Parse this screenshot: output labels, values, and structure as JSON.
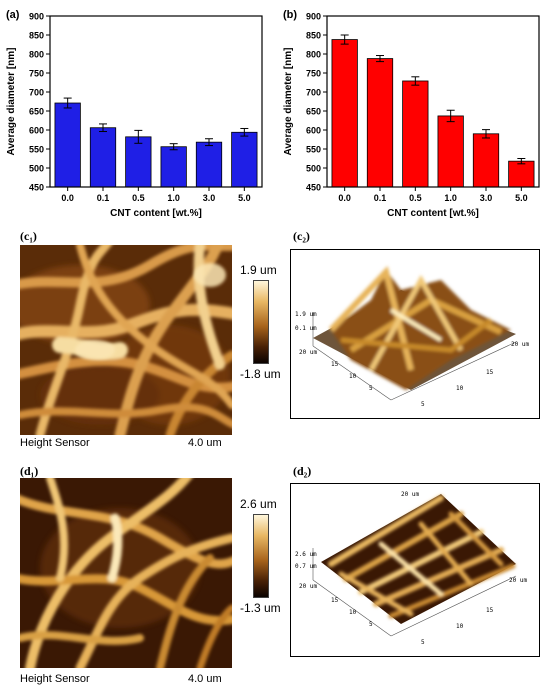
{
  "chart_data": [
    {
      "type": "bar",
      "panel": "(a)",
      "color": "#1f1fe6",
      "categories": [
        "0.0",
        "0.1",
        "0.5",
        "1.0",
        "3.0",
        "5.0"
      ],
      "values": [
        671,
        606,
        582,
        556,
        568,
        594
      ],
      "errors": [
        13,
        10,
        17,
        8,
        9,
        10
      ],
      "ylim": [
        450,
        900
      ],
      "yticks": [
        "450",
        "500",
        "550",
        "600",
        "650",
        "700",
        "750",
        "800",
        "850",
        "900"
      ],
      "xlabel": "CNT content [wt.%]",
      "ylabel": "Average diameter [nm]"
    },
    {
      "type": "bar",
      "panel": "(b)",
      "color": "#ff0000",
      "categories": [
        "0.0",
        "0.1",
        "0.5",
        "1.0",
        "3.0",
        "5.0"
      ],
      "values": [
        838,
        788,
        729,
        637,
        590,
        518
      ],
      "errors": [
        12,
        8,
        11,
        15,
        11,
        7
      ],
      "ylim": [
        450,
        900
      ],
      "yticks": [
        "450",
        "500",
        "550",
        "600",
        "650",
        "700",
        "750",
        "800",
        "850",
        "900"
      ],
      "xlabel": "CNT content [wt.%]",
      "ylabel": "Average diameter [nm]"
    }
  ],
  "afm": {
    "c1": {
      "label": "(c₁)",
      "sensor": "Height Sensor",
      "scale": "4.0 um",
      "max": "1.9 um",
      "min": "-1.8 um"
    },
    "c2": {
      "label": "(c₂)",
      "ztick_top": "1.9 um",
      "ztick_mid": "0.1 um",
      "size": "20 um",
      "ticks": [
        "5",
        "10",
        "15",
        "20 um"
      ]
    },
    "d1": {
      "label": "(d₁)",
      "sensor": "Height Sensor",
      "scale": "4.0 um",
      "max": "2.6 um",
      "min": "-1.3 um"
    },
    "d2": {
      "label": "(d₂)",
      "ztick_top": "2.6 um",
      "ztick_mid": "0.7 um",
      "size": "20 um",
      "ticks": [
        "5",
        "10",
        "15",
        "20 um"
      ]
    }
  }
}
